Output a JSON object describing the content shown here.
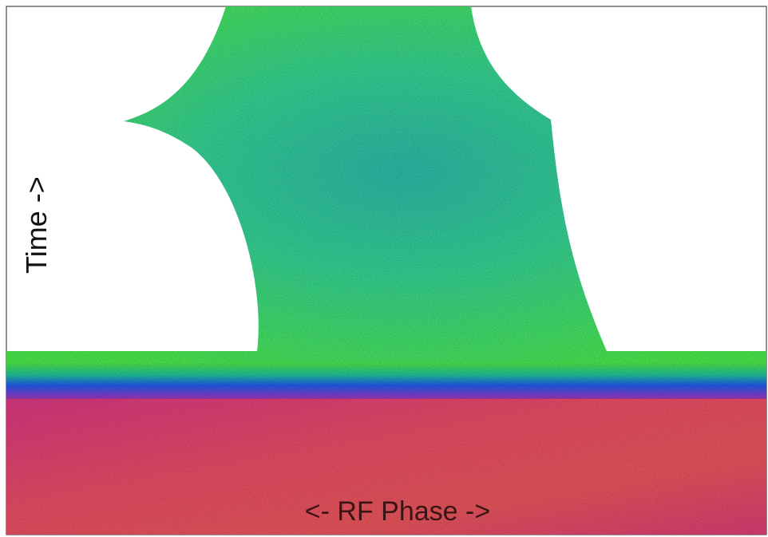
{
  "labels": {
    "y_axis": "Time ->",
    "x_axis": "<- RF Phase ->"
  }
}
